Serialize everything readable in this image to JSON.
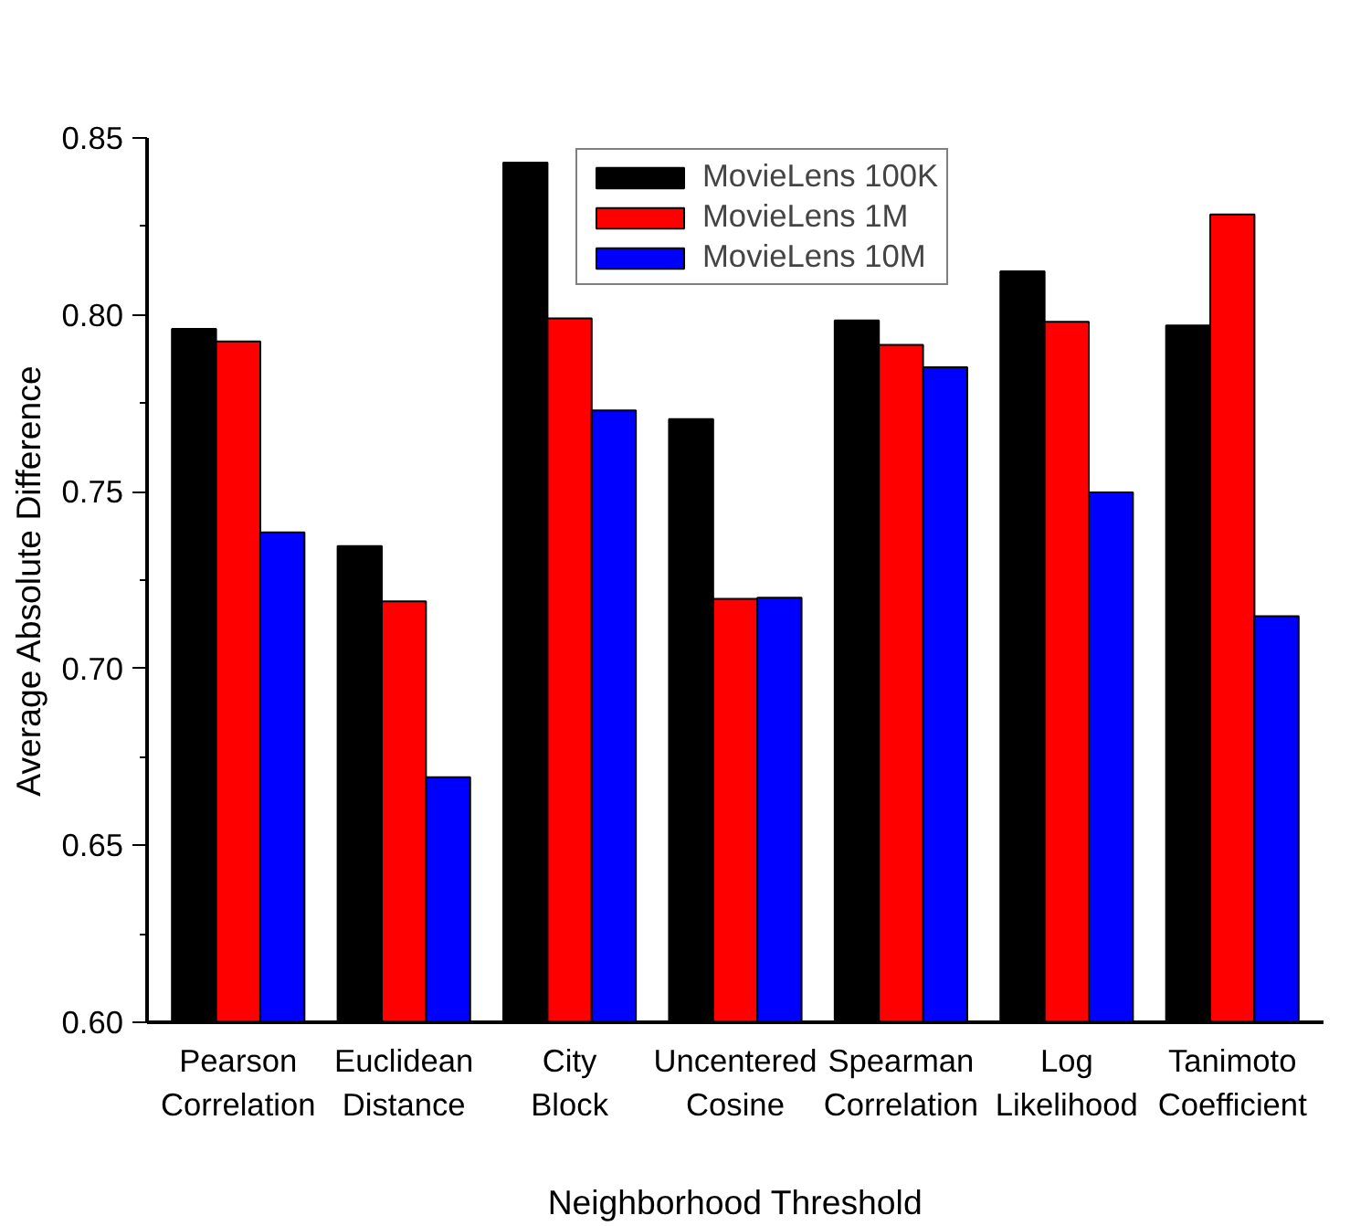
{
  "chart_data": {
    "type": "bar",
    "xlabel": "Neighborhood Threshold",
    "ylabel": "Average Absolute Difference",
    "categories": [
      "Pearson Correlation",
      "Euclidean Distance",
      "City Block",
      "Uncentered Cosine",
      "Spearman Correlation",
      "Log Likelihood",
      "Tanimoto Coefficient"
    ],
    "series": [
      {
        "name": "MovieLens 100K",
        "color": "#000000",
        "values": [
          0.796,
          0.7346,
          0.843,
          0.7705,
          0.7984,
          0.8123,
          0.797
        ]
      },
      {
        "name": "MovieLens 1M",
        "color": "#ff0000",
        "values": [
          0.7925,
          0.719,
          0.799,
          0.7197,
          0.7915,
          0.798,
          0.8284
        ]
      },
      {
        "name": "MovieLens 10M",
        "color": "#0000ff",
        "values": [
          0.7385,
          0.6693,
          0.773,
          0.72,
          0.7852,
          0.7498,
          0.7148
        ]
      }
    ],
    "ylim": [
      0.6,
      0.85
    ],
    "yticks": [
      {
        "value": 0.6,
        "label": "0.60"
      },
      {
        "value": 0.65,
        "label": "0.65"
      },
      {
        "value": 0.7,
        "label": "0.70"
      },
      {
        "value": 0.75,
        "label": "0.75"
      },
      {
        "value": 0.8,
        "label": "0.80"
      },
      {
        "value": 0.85,
        "label": "0.85"
      }
    ],
    "grid": false,
    "legend": "top"
  }
}
